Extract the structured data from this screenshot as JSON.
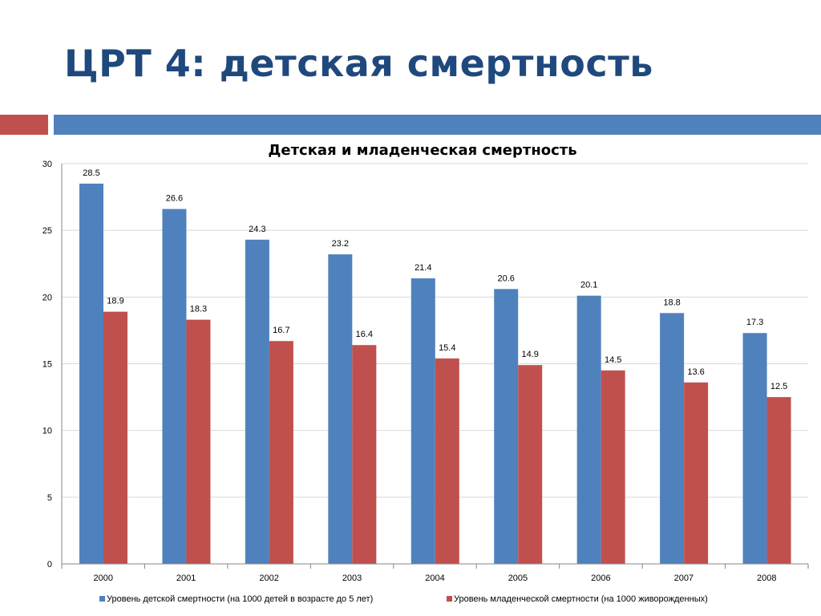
{
  "slide": {
    "title": "ЦРТ 4: детская смертность"
  },
  "colors": {
    "title": "#1f497d",
    "series_child": "#4f81bd",
    "series_infant": "#c0504d",
    "grid": "#d9d9d9"
  },
  "chart_data": {
    "type": "bar",
    "title": "Детская и младенческая смертность",
    "xlabel": "",
    "ylabel": "",
    "categories": [
      "2000",
      "2001",
      "2002",
      "2003",
      "2004",
      "2005",
      "2006",
      "2007",
      "2008"
    ],
    "series": [
      {
        "name": "Уровень детской смертности (на 1000 детей в возрасте до 5 лет)",
        "values": [
          28.5,
          26.6,
          24.3,
          23.2,
          21.4,
          20.6,
          20.1,
          18.8,
          17.3
        ]
      },
      {
        "name": "Уровень младенческой смертности (на 1000 живорожденных)",
        "values": [
          18.9,
          18.3,
          16.7,
          16.4,
          15.4,
          14.9,
          14.5,
          13.6,
          12.5
        ]
      }
    ],
    "ylim": [
      0,
      30
    ],
    "yticks": [
      "0",
      "5",
      "10",
      "15",
      "20",
      "25",
      "30"
    ],
    "grid": true,
    "legend_position": "bottom"
  }
}
